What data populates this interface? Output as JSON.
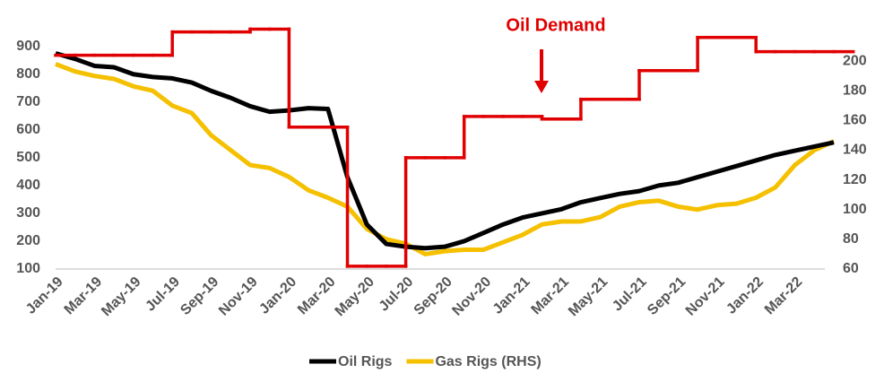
{
  "chart_data": {
    "type": "line",
    "annotation": "Oil Demand",
    "categories": [
      "Jan-19",
      null,
      "Mar-19",
      null,
      "May-19",
      null,
      "Jul-19",
      null,
      "Sep-19",
      null,
      "Nov-19",
      null,
      "Jan-20",
      null,
      "Mar-20",
      null,
      "May-20",
      null,
      "Jul-20",
      null,
      "Sep-20",
      null,
      "Nov-20",
      null,
      "Jan-21",
      null,
      "Mar-21",
      null,
      "May-21",
      null,
      "Jul-21",
      null,
      "Sep-21",
      null,
      "Nov-21",
      null,
      "Jan-22",
      null,
      "Mar-22",
      null,
      null
    ],
    "series": [
      {
        "name": "Oil Rigs",
        "color": "#000000",
        "legend": true,
        "values": [
          875,
          855,
          830,
          825,
          800,
          790,
          785,
          770,
          740,
          715,
          685,
          665,
          670,
          678,
          675,
          430,
          260,
          190,
          180,
          175,
          180,
          200,
          230,
          260,
          285,
          300,
          315,
          340,
          355,
          370,
          380,
          400,
          410,
          430,
          450,
          470,
          490,
          510,
          525,
          540,
          555
        ]
      },
      {
        "name": "Gas Rigs (RHS)",
        "color": "#f5c000",
        "axis": "y2",
        "legend": true,
        "values": [
          198,
          193,
          190,
          188,
          183,
          180,
          170,
          165,
          150,
          140,
          130,
          128,
          122,
          113,
          108,
          102,
          87,
          80,
          77,
          70,
          72,
          73,
          73,
          78,
          83,
          90,
          92,
          92,
          95,
          102,
          105,
          106,
          102,
          100,
          103,
          104,
          108,
          115,
          130,
          140,
          146
        ]
      },
      {
        "name": "Oil Demand",
        "color": "#e00000",
        "legend": false,
        "step": true,
        "values": [
          868,
          868,
          868,
          868,
          868,
          868,
          952,
          952,
          952,
          952,
          962,
          962,
          610,
          610,
          610,
          110,
          110,
          110,
          500,
          500,
          500,
          648,
          648,
          648,
          648,
          639,
          639,
          710,
          710,
          710,
          813,
          813,
          813,
          932,
          932,
          932,
          881,
          881,
          881,
          881,
          881
        ]
      }
    ],
    "ylim": [
      100,
      970
    ],
    "yticks": [
      100,
      200,
      300,
      400,
      500,
      600,
      700,
      800,
      900
    ],
    "y2lim": [
      60,
      223
    ],
    "y2ticks": [
      60,
      80,
      100,
      120,
      140,
      160,
      180,
      200
    ],
    "grid": false
  }
}
